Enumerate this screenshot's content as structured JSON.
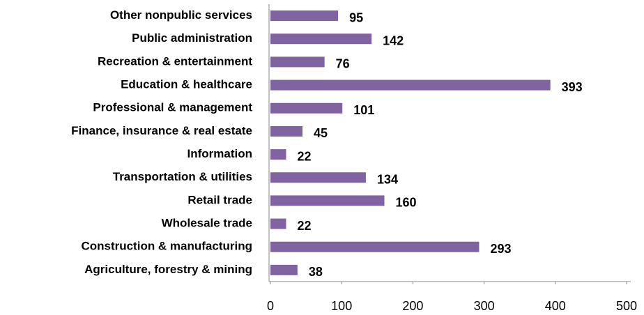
{
  "chart_data": {
    "type": "bar",
    "orientation": "horizontal",
    "categories": [
      "Other nonpublic services",
      "Public administration",
      "Recreation & entertainment",
      "Education & healthcare",
      "Professional & management",
      "Finance, insurance & real estate",
      "Information",
      "Transportation & utilities",
      "Retail trade",
      "Wholesale trade",
      "Construction & manufacturing",
      "Agriculture, forestry & mining"
    ],
    "values": [
      95,
      142,
      76,
      393,
      101,
      45,
      22,
      134,
      160,
      22,
      293,
      38
    ],
    "color": "#8064a2",
    "xlim": [
      0,
      500
    ],
    "xticks": [
      0,
      100,
      200,
      300,
      400,
      500
    ],
    "grid": false
  }
}
